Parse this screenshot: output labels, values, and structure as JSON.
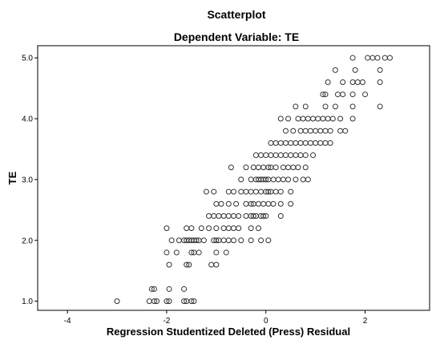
{
  "chart_data": {
    "type": "scatter",
    "title": "Scatterplot",
    "subtitle": "Dependent Variable: TE",
    "xlabel": "Regression Studentized Deleted (Press) Residual",
    "ylabel": "TE",
    "xlim": [
      -4.6,
      3.3
    ],
    "ylim": [
      0.85,
      5.2
    ],
    "x_ticks": [
      -4,
      -2,
      0,
      2
    ],
    "x_tick_labels": [
      "-4",
      "-2",
      "0",
      "2"
    ],
    "y_ticks": [
      1.0,
      2.0,
      3.0,
      4.0,
      5.0
    ],
    "y_tick_labels": [
      "1.0",
      "2.0",
      "3.0",
      "4.0",
      "5.0"
    ],
    "grid": false,
    "marker": "hollow-circle",
    "colors": {
      "marker_stroke": "#333333",
      "frame": "#000000",
      "background": "#ffffff"
    },
    "series": [
      {
        "points": [
          [
            -3.0,
            1.0
          ],
          [
            -2.35,
            1.0
          ],
          [
            -2.25,
            1.0
          ],
          [
            -2.2,
            1.0
          ],
          [
            -2.0,
            1.0
          ],
          [
            -1.95,
            1.0
          ],
          [
            -1.65,
            1.0
          ],
          [
            -1.6,
            1.0
          ],
          [
            -1.5,
            1.0
          ],
          [
            -1.45,
            1.0
          ],
          [
            -2.3,
            1.2
          ],
          [
            -2.25,
            1.2
          ],
          [
            -1.95,
            1.2
          ],
          [
            -1.65,
            1.2
          ],
          [
            -1.95,
            1.6
          ],
          [
            -1.6,
            1.6
          ],
          [
            -1.55,
            1.6
          ],
          [
            -1.1,
            1.6
          ],
          [
            -1.0,
            1.6
          ],
          [
            -2.0,
            1.8
          ],
          [
            -1.8,
            1.8
          ],
          [
            -1.5,
            1.8
          ],
          [
            -1.45,
            1.8
          ],
          [
            -1.35,
            1.8
          ],
          [
            -1.0,
            1.8
          ],
          [
            -0.8,
            1.8
          ],
          [
            -1.9,
            2.0
          ],
          [
            -1.75,
            2.0
          ],
          [
            -1.65,
            2.0
          ],
          [
            -1.6,
            2.0
          ],
          [
            -1.55,
            2.0
          ],
          [
            -1.5,
            2.0
          ],
          [
            -1.45,
            2.0
          ],
          [
            -1.4,
            2.0
          ],
          [
            -1.35,
            2.0
          ],
          [
            -1.25,
            2.0
          ],
          [
            -1.05,
            2.0
          ],
          [
            -1.0,
            2.0
          ],
          [
            -0.95,
            2.0
          ],
          [
            -0.85,
            2.0
          ],
          [
            -0.75,
            2.0
          ],
          [
            -0.65,
            2.0
          ],
          [
            -0.5,
            2.0
          ],
          [
            -0.3,
            2.0
          ],
          [
            -0.1,
            2.0
          ],
          [
            0.05,
            2.0
          ],
          [
            -2.0,
            2.2
          ],
          [
            -1.5,
            2.2
          ],
          [
            -1.3,
            2.2
          ],
          [
            -1.0,
            2.2
          ],
          [
            -0.85,
            2.2
          ],
          [
            -0.75,
            2.2
          ],
          [
            -0.55,
            2.2
          ],
          [
            -0.3,
            2.2
          ],
          [
            -0.15,
            2.2
          ],
          [
            -1.6,
            2.2
          ],
          [
            -1.15,
            2.2
          ],
          [
            -0.65,
            2.2
          ],
          [
            -1.15,
            2.4
          ],
          [
            -1.05,
            2.4
          ],
          [
            -0.95,
            2.4
          ],
          [
            -0.85,
            2.4
          ],
          [
            -0.75,
            2.4
          ],
          [
            -0.65,
            2.4
          ],
          [
            -0.55,
            2.4
          ],
          [
            -0.4,
            2.4
          ],
          [
            -0.3,
            2.4
          ],
          [
            -0.25,
            2.4
          ],
          [
            -0.2,
            2.4
          ],
          [
            -0.1,
            2.4
          ],
          [
            -0.05,
            2.4
          ],
          [
            0.0,
            2.4
          ],
          [
            0.3,
            2.4
          ],
          [
            -1.0,
            2.6
          ],
          [
            -0.9,
            2.6
          ],
          [
            -0.75,
            2.6
          ],
          [
            -0.6,
            2.6
          ],
          [
            -0.4,
            2.6
          ],
          [
            -0.3,
            2.6
          ],
          [
            -0.25,
            2.6
          ],
          [
            -0.15,
            2.6
          ],
          [
            -0.05,
            2.6
          ],
          [
            0.05,
            2.6
          ],
          [
            0.15,
            2.6
          ],
          [
            0.3,
            2.6
          ],
          [
            0.5,
            2.6
          ],
          [
            -1.2,
            2.8
          ],
          [
            -1.05,
            2.8
          ],
          [
            -0.75,
            2.8
          ],
          [
            -0.65,
            2.8
          ],
          [
            -0.5,
            2.8
          ],
          [
            -0.4,
            2.8
          ],
          [
            -0.3,
            2.8
          ],
          [
            -0.2,
            2.8
          ],
          [
            -0.1,
            2.8
          ],
          [
            0.0,
            2.8
          ],
          [
            0.05,
            2.8
          ],
          [
            0.1,
            2.8
          ],
          [
            0.2,
            2.8
          ],
          [
            0.3,
            2.8
          ],
          [
            0.5,
            2.8
          ],
          [
            -0.5,
            3.0
          ],
          [
            -0.3,
            3.0
          ],
          [
            -0.2,
            3.0
          ],
          [
            -0.15,
            3.0
          ],
          [
            -0.1,
            3.0
          ],
          [
            -0.05,
            3.0
          ],
          [
            0.0,
            3.0
          ],
          [
            0.05,
            3.0
          ],
          [
            0.15,
            3.0
          ],
          [
            0.25,
            3.0
          ],
          [
            0.35,
            3.0
          ],
          [
            0.45,
            3.0
          ],
          [
            0.6,
            3.0
          ],
          [
            0.75,
            3.0
          ],
          [
            0.85,
            3.0
          ],
          [
            -0.7,
            3.2
          ],
          [
            -0.4,
            3.2
          ],
          [
            -0.25,
            3.2
          ],
          [
            -0.15,
            3.2
          ],
          [
            -0.05,
            3.2
          ],
          [
            0.05,
            3.2
          ],
          [
            0.1,
            3.2
          ],
          [
            0.2,
            3.2
          ],
          [
            0.35,
            3.2
          ],
          [
            0.45,
            3.2
          ],
          [
            0.55,
            3.2
          ],
          [
            0.65,
            3.2
          ],
          [
            0.8,
            3.2
          ],
          [
            -0.2,
            3.4
          ],
          [
            -0.1,
            3.4
          ],
          [
            0.0,
            3.4
          ],
          [
            0.1,
            3.4
          ],
          [
            0.2,
            3.4
          ],
          [
            0.3,
            3.4
          ],
          [
            0.4,
            3.4
          ],
          [
            0.5,
            3.4
          ],
          [
            0.6,
            3.4
          ],
          [
            0.7,
            3.4
          ],
          [
            0.8,
            3.4
          ],
          [
            0.95,
            3.4
          ],
          [
            0.1,
            3.6
          ],
          [
            0.2,
            3.6
          ],
          [
            0.3,
            3.6
          ],
          [
            0.4,
            3.6
          ],
          [
            0.5,
            3.6
          ],
          [
            0.6,
            3.6
          ],
          [
            0.7,
            3.6
          ],
          [
            0.8,
            3.6
          ],
          [
            0.9,
            3.6
          ],
          [
            1.0,
            3.6
          ],
          [
            1.1,
            3.6
          ],
          [
            1.2,
            3.6
          ],
          [
            1.3,
            3.6
          ],
          [
            0.4,
            3.8
          ],
          [
            0.55,
            3.8
          ],
          [
            0.7,
            3.8
          ],
          [
            0.8,
            3.8
          ],
          [
            0.9,
            3.8
          ],
          [
            1.0,
            3.8
          ],
          [
            1.1,
            3.8
          ],
          [
            1.2,
            3.8
          ],
          [
            1.3,
            3.8
          ],
          [
            1.5,
            3.8
          ],
          [
            1.6,
            3.8
          ],
          [
            0.3,
            4.0
          ],
          [
            0.45,
            4.0
          ],
          [
            0.65,
            4.0
          ],
          [
            0.75,
            4.0
          ],
          [
            0.85,
            4.0
          ],
          [
            0.95,
            4.0
          ],
          [
            1.05,
            4.0
          ],
          [
            1.15,
            4.0
          ],
          [
            1.25,
            4.0
          ],
          [
            1.35,
            4.0
          ],
          [
            1.5,
            4.0
          ],
          [
            1.75,
            4.0
          ],
          [
            0.6,
            4.2
          ],
          [
            0.8,
            4.2
          ],
          [
            1.2,
            4.2
          ],
          [
            1.4,
            4.2
          ],
          [
            1.75,
            4.2
          ],
          [
            2.3,
            4.2
          ],
          [
            1.15,
            4.4
          ],
          [
            1.2,
            4.4
          ],
          [
            1.45,
            4.4
          ],
          [
            1.55,
            4.4
          ],
          [
            1.75,
            4.4
          ],
          [
            2.0,
            4.4
          ],
          [
            1.25,
            4.6
          ],
          [
            1.55,
            4.6
          ],
          [
            1.75,
            4.6
          ],
          [
            1.85,
            4.6
          ],
          [
            1.95,
            4.6
          ],
          [
            2.3,
            4.6
          ],
          [
            1.4,
            4.8
          ],
          [
            1.8,
            4.8
          ],
          [
            2.3,
            4.8
          ],
          [
            1.75,
            5.0
          ],
          [
            2.05,
            5.0
          ],
          [
            2.15,
            5.0
          ],
          [
            2.25,
            5.0
          ],
          [
            2.4,
            5.0
          ],
          [
            2.5,
            5.0
          ]
        ]
      }
    ]
  }
}
